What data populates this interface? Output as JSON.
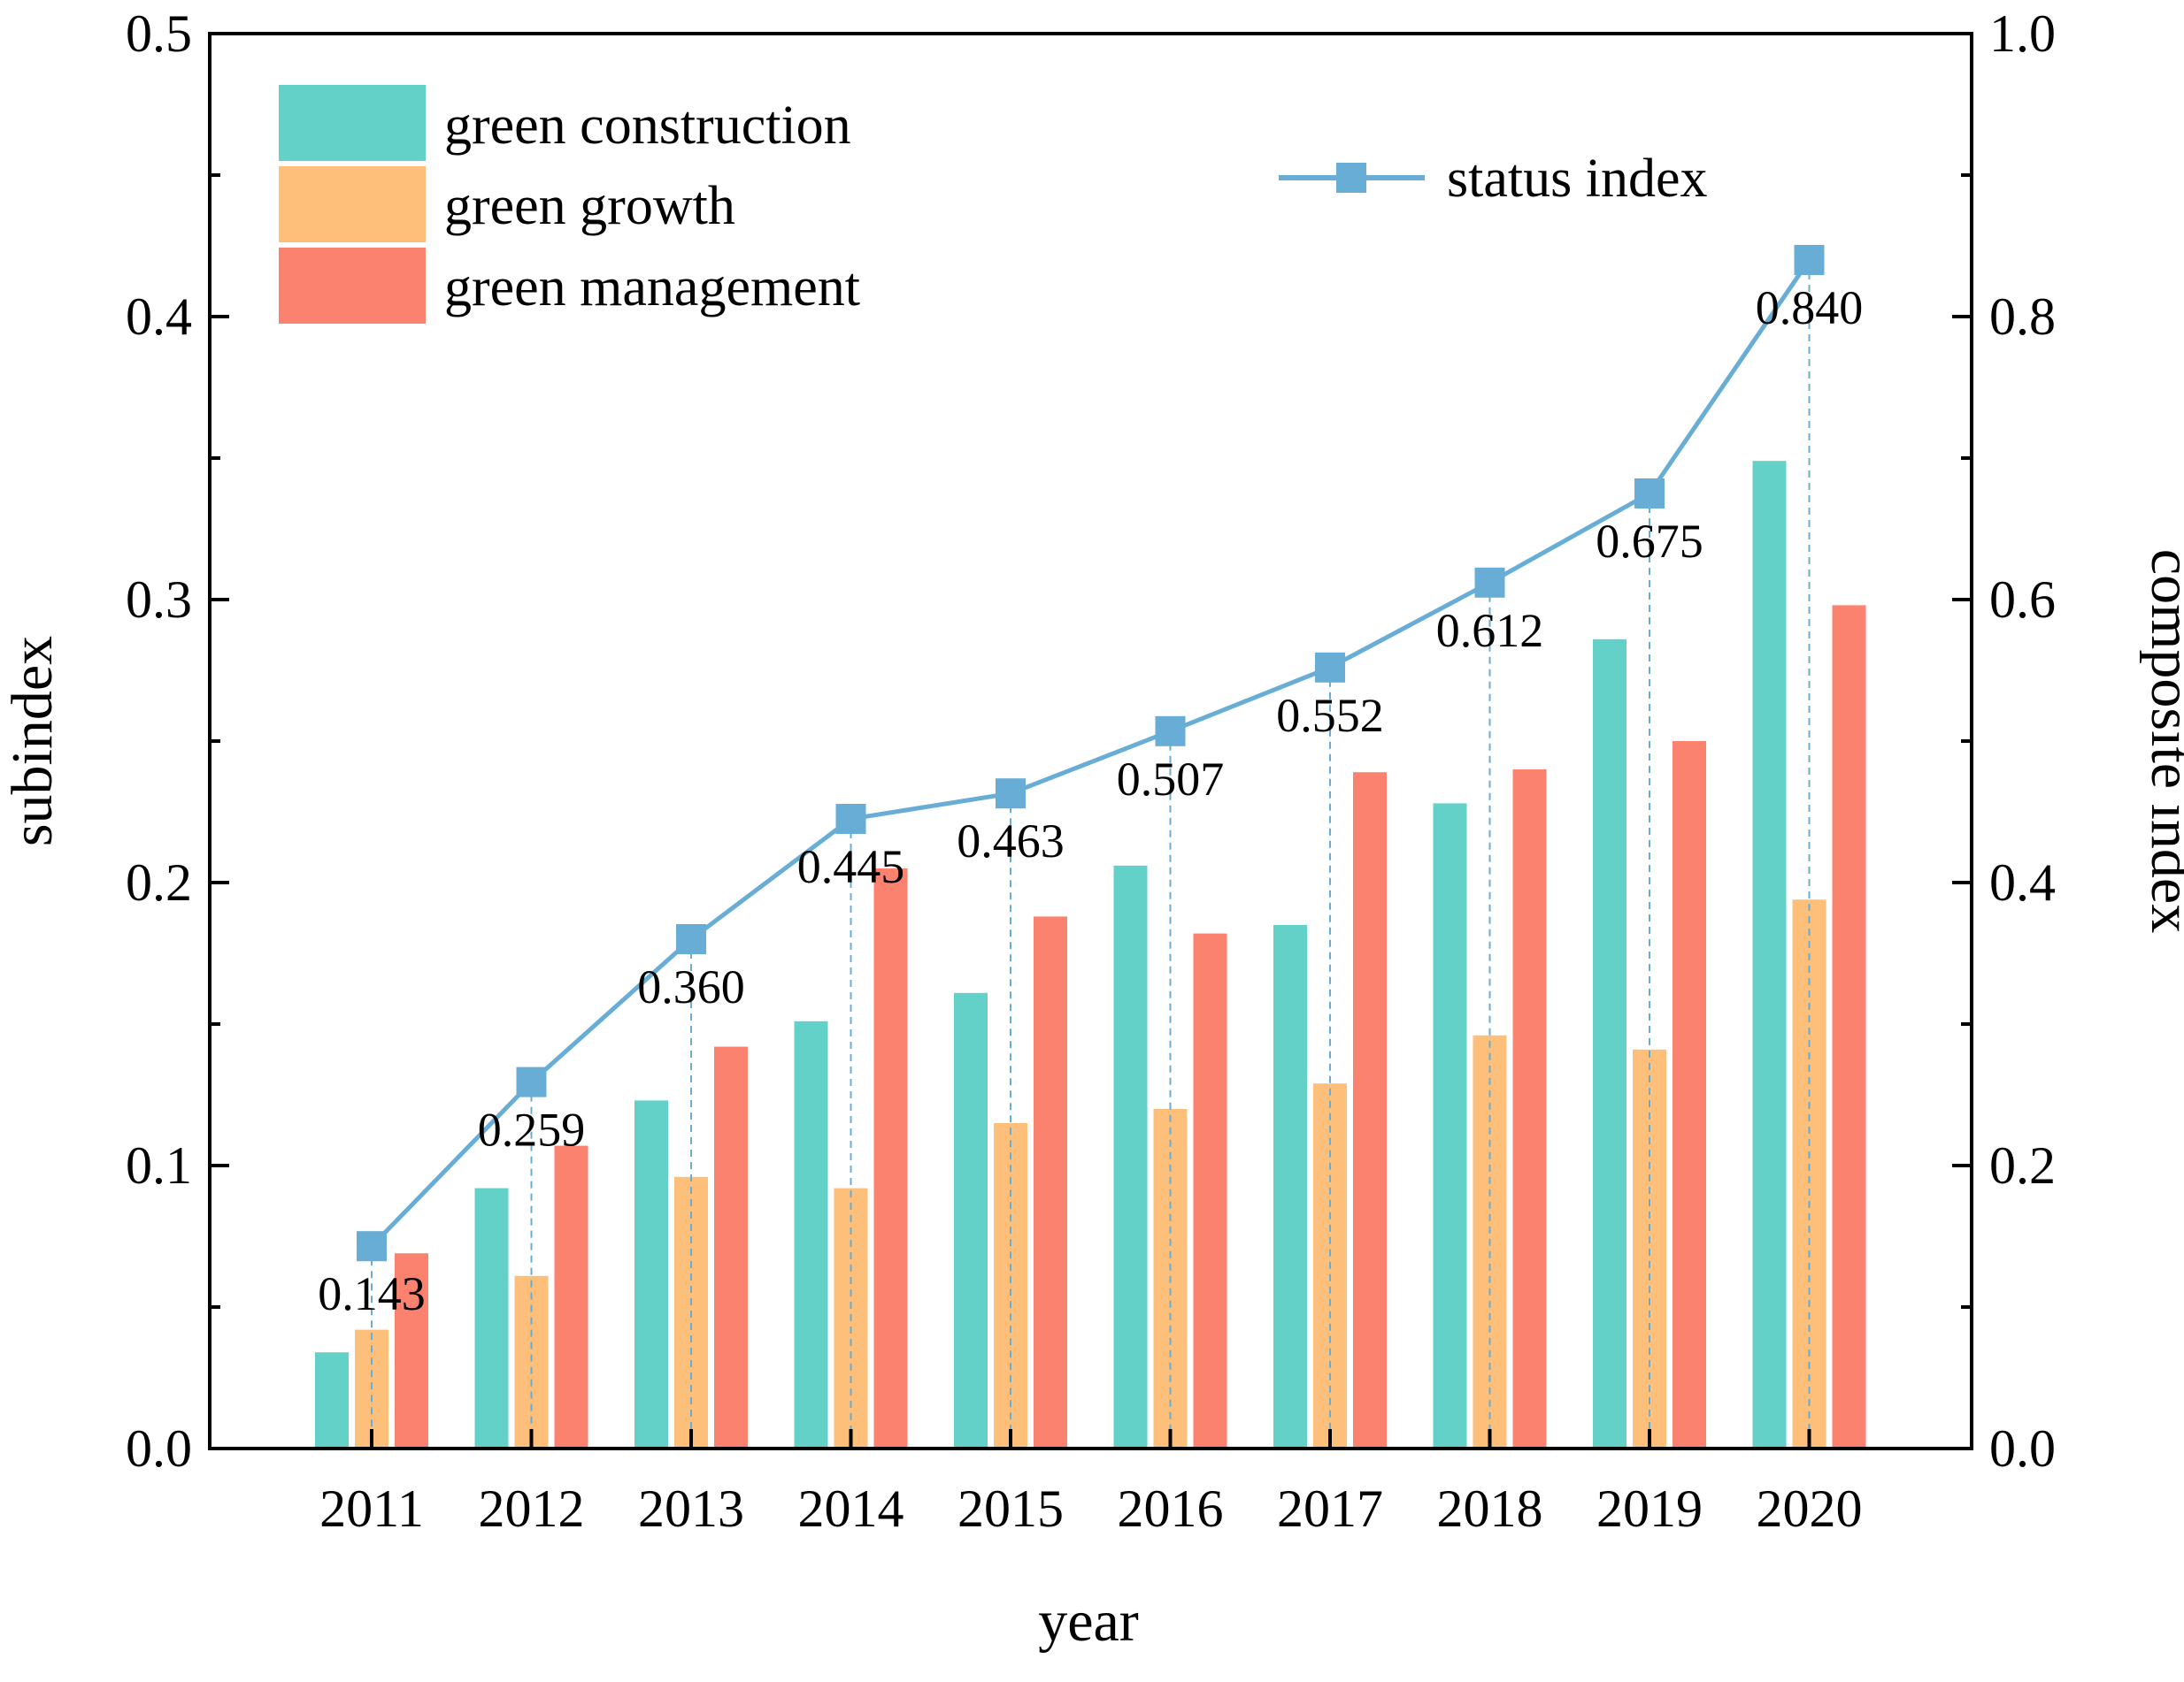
{
  "chart_data": {
    "type": "bar",
    "categories": [
      "2011",
      "2012",
      "2013",
      "2014",
      "2015",
      "2016",
      "2017",
      "2018",
      "2019",
      "2020"
    ],
    "series": [
      {
        "name": "green construction",
        "color": "#64D1C8",
        "axis": "left",
        "values": [
          0.034,
          0.092,
          0.123,
          0.151,
          0.161,
          0.206,
          0.185,
          0.228,
          0.286,
          0.349
        ]
      },
      {
        "name": "green growth",
        "color": "#FDBF79",
        "axis": "left",
        "values": [
          0.042,
          0.061,
          0.096,
          0.092,
          0.115,
          0.12,
          0.129,
          0.146,
          0.141,
          0.194
        ]
      },
      {
        "name": "green management",
        "color": "#FC8270",
        "axis": "left",
        "values": [
          0.069,
          0.107,
          0.142,
          0.205,
          0.188,
          0.182,
          0.239,
          0.24,
          0.25,
          0.298
        ]
      }
    ],
    "line": {
      "name": "status index",
      "type": "line",
      "color": "#67ADD6",
      "axis": "right",
      "values": [
        0.143,
        0.259,
        0.36,
        0.445,
        0.463,
        0.507,
        0.552,
        0.612,
        0.675,
        0.84
      ],
      "labels": [
        "0.143",
        "0.259",
        "0.360",
        "0.445",
        "0.463",
        "0.507",
        "0.552",
        "0.612",
        "0.675",
        "0.840"
      ]
    },
    "xlabel": "year",
    "ylabel": "subindex",
    "y2label": "composite index",
    "ylim": [
      0,
      0.5
    ],
    "y2lim": [
      0,
      1.0
    ],
    "yticks": [
      "0.0",
      "0.1",
      "0.2",
      "0.3",
      "0.4",
      "0.5"
    ],
    "y2ticks": [
      "0.0",
      "0.2",
      "0.4",
      "0.6",
      "0.8",
      "1.0"
    ],
    "grid": false,
    "legend_bars_position": "top-left",
    "legend_line_position": "top-right"
  }
}
